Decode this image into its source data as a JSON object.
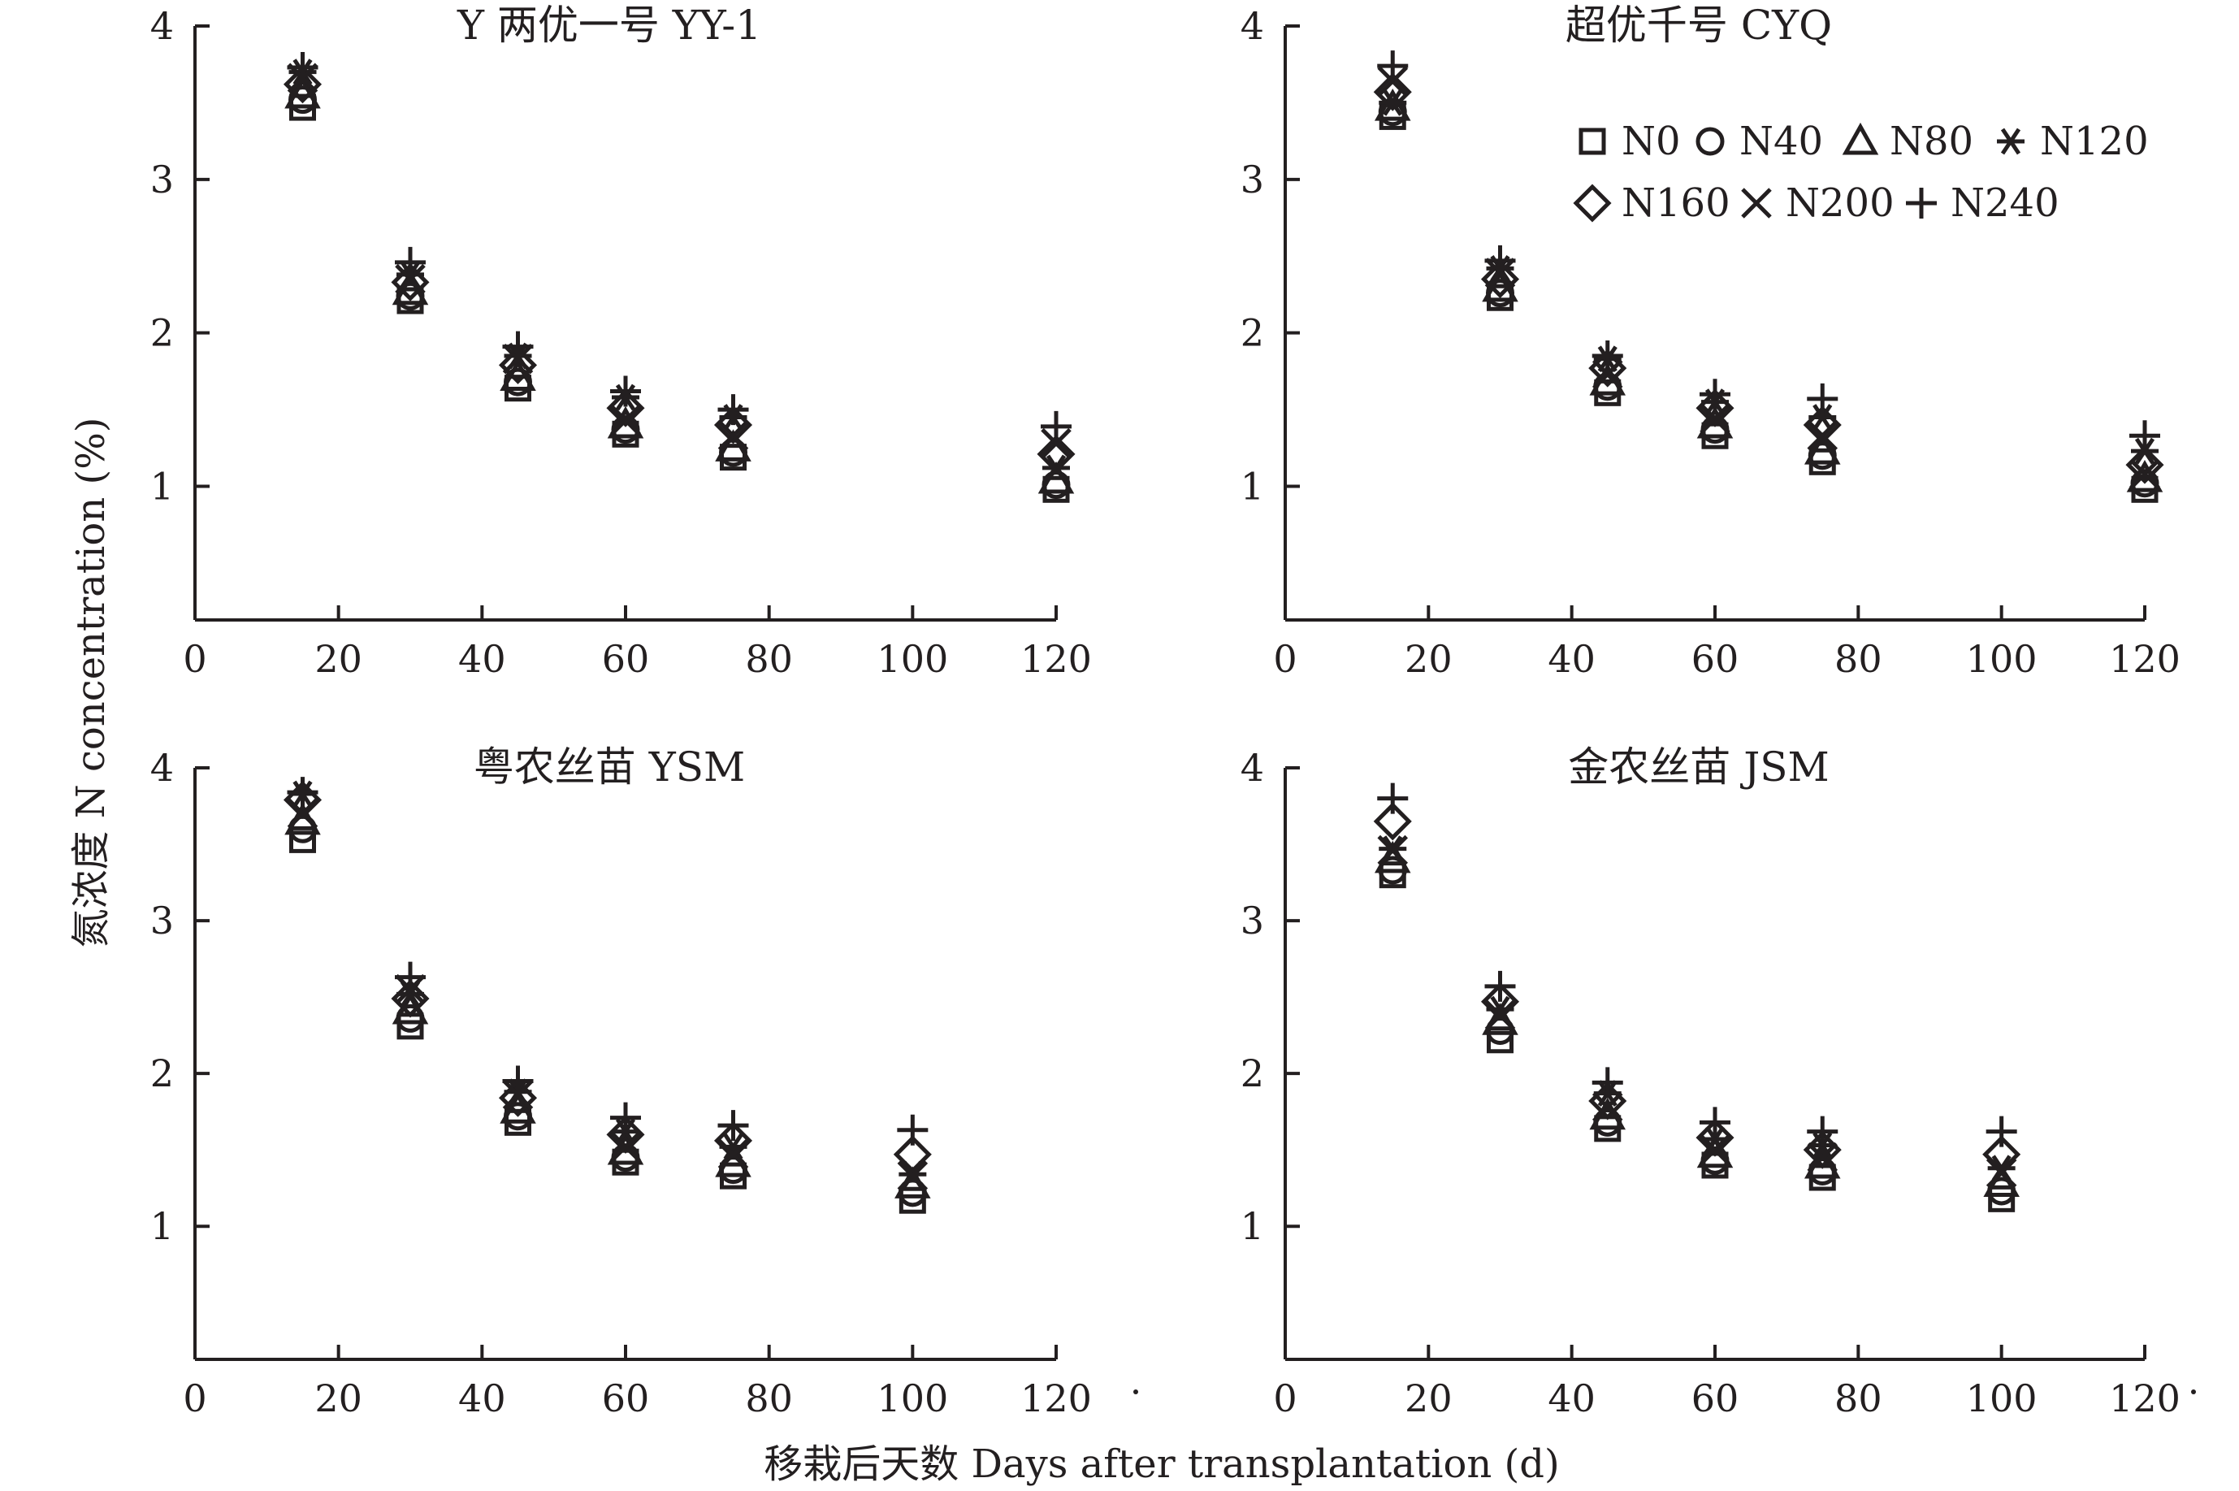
{
  "chart_data": {
    "type": "scatter",
    "ylabel": "氮浓度 N concentration (%)",
    "xlabel": "移栽后天数 Days after transplantation (d)",
    "xlim": [
      0,
      120
    ],
    "ylim": [
      1,
      4
    ],
    "xticks": [
      0,
      20,
      40,
      60,
      80,
      100,
      120
    ],
    "yticks": [
      1,
      2,
      3,
      4
    ],
    "grid": false,
    "legend": {
      "placement": "top-right of upper-right panel",
      "entries": [
        {
          "label": "N0",
          "marker": "square"
        },
        {
          "label": "N40",
          "marker": "circle"
        },
        {
          "label": "N80",
          "marker": "triangle"
        },
        {
          "label": "N120",
          "marker": "asterisk"
        },
        {
          "label": "N160",
          "marker": "diamond"
        },
        {
          "label": "N200",
          "marker": "x"
        },
        {
          "label": "N240",
          "marker": "plus"
        }
      ]
    },
    "panels": [
      {
        "title": "Y 两优一号 YY-1",
        "x": [
          15,
          30,
          45,
          60,
          75,
          120
        ],
        "series": [
          {
            "name": "N0",
            "marker": "square",
            "values": [
              3.47,
              2.21,
              1.64,
              1.34,
              1.19,
              0.98
            ]
          },
          {
            "name": "N40",
            "marker": "circle",
            "values": [
              3.52,
              2.24,
              1.68,
              1.37,
              1.22,
              1.01
            ]
          },
          {
            "name": "N80",
            "marker": "triangle",
            "values": [
              3.55,
              2.27,
              1.71,
              1.4,
              1.25,
              1.04
            ]
          },
          {
            "name": "N120",
            "marker": "asterisk",
            "values": [
              3.7,
              2.38,
              1.85,
              1.58,
              1.45,
              1.12
            ]
          },
          {
            "name": "N160",
            "marker": "diamond",
            "values": [
              3.62,
              2.33,
              1.79,
              1.51,
              1.4,
              1.21
            ]
          },
          {
            "name": "N200",
            "marker": "x",
            "values": [
              3.66,
              2.35,
              1.83,
              1.43,
              1.33,
              1.28
            ]
          },
          {
            "name": "N240",
            "marker": "plus",
            "values": [
              3.73,
              2.46,
              1.91,
              1.62,
              1.5,
              1.39
            ]
          }
        ]
      },
      {
        "title": "超优千号 CYQ",
        "x": [
          15,
          30,
          45,
          60,
          75,
          120
        ],
        "series": [
          {
            "name": "N0",
            "marker": "square",
            "values": [
              3.41,
              2.23,
              1.61,
              1.33,
              1.16,
              0.98
            ]
          },
          {
            "name": "N40",
            "marker": "circle",
            "values": [
              3.44,
              2.26,
              1.65,
              1.37,
              1.2,
              1.02
            ]
          },
          {
            "name": "N80",
            "marker": "triangle",
            "values": [
              3.47,
              2.29,
              1.68,
              1.4,
              1.23,
              1.05
            ]
          },
          {
            "name": "N120",
            "marker": "asterisk",
            "values": [
              3.5,
              2.42,
              1.83,
              1.55,
              1.45,
              1.23
            ]
          },
          {
            "name": "N160",
            "marker": "diamond",
            "values": [
              3.57,
              2.35,
              1.77,
              1.51,
              1.4,
              1.14
            ]
          },
          {
            "name": "N200",
            "marker": "x",
            "values": [
              3.64,
              2.39,
              1.73,
              1.44,
              1.33,
              1.08
            ]
          },
          {
            "name": "N240",
            "marker": "plus",
            "values": [
              3.74,
              2.47,
              1.85,
              1.6,
              1.57,
              1.33
            ]
          }
        ]
      },
      {
        "title": "粤农丝苗 YSM",
        "x": [
          15,
          30,
          45,
          60,
          75,
          100
        ],
        "series": [
          {
            "name": "N0",
            "marker": "square",
            "values": [
              3.53,
              2.31,
              1.68,
              1.42,
              1.33,
              1.17
            ]
          },
          {
            "name": "N40",
            "marker": "circle",
            "values": [
              3.6,
              2.36,
              1.72,
              1.45,
              1.37,
              1.22
            ]
          },
          {
            "name": "N80",
            "marker": "triangle",
            "values": [
              3.65,
              2.41,
              1.76,
              1.49,
              1.41,
              1.27
            ]
          },
          {
            "name": "N120",
            "marker": "asterisk",
            "values": [
              3.83,
              2.52,
              1.88,
              1.62,
              1.52,
              1.34
            ]
          },
          {
            "name": "N160",
            "marker": "diamond",
            "values": [
              3.79,
              2.49,
              1.84,
              1.6,
              1.56,
              1.47
            ]
          },
          {
            "name": "N200",
            "marker": "x",
            "values": [
              3.7,
              2.55,
              1.86,
              1.52,
              1.47,
              1.33
            ]
          },
          {
            "name": "N240",
            "marker": "plus",
            "values": [
              3.84,
              2.63,
              1.95,
              1.71,
              1.66,
              1.63
            ]
          }
        ]
      },
      {
        "title": "金农丝苗 JSM",
        "x": [
          15,
          30,
          45,
          60,
          75,
          100
        ],
        "series": [
          {
            "name": "N0",
            "marker": "square",
            "values": [
              3.3,
              2.22,
              1.64,
              1.4,
              1.32,
              1.18
            ]
          },
          {
            "name": "N40",
            "marker": "circle",
            "values": [
              3.33,
              2.28,
              1.68,
              1.43,
              1.36,
              1.23
            ]
          },
          {
            "name": "N80",
            "marker": "triangle",
            "values": [
              3.4,
              2.34,
              1.72,
              1.47,
              1.4,
              1.28
            ]
          },
          {
            "name": "N120",
            "marker": "asterisk",
            "values": [
              3.47,
              2.42,
              1.87,
              1.57,
              1.53,
              1.38
            ]
          },
          {
            "name": "N160",
            "marker": "diamond",
            "values": [
              3.65,
              2.47,
              1.82,
              1.58,
              1.5,
              1.47
            ]
          },
          {
            "name": "N200",
            "marker": "x",
            "values": [
              3.46,
              2.38,
              1.78,
              1.5,
              1.45,
              1.35
            ]
          },
          {
            "name": "N240",
            "marker": "plus",
            "values": [
              3.8,
              2.57,
              1.94,
              1.68,
              1.62,
              1.62
            ]
          }
        ]
      }
    ]
  }
}
